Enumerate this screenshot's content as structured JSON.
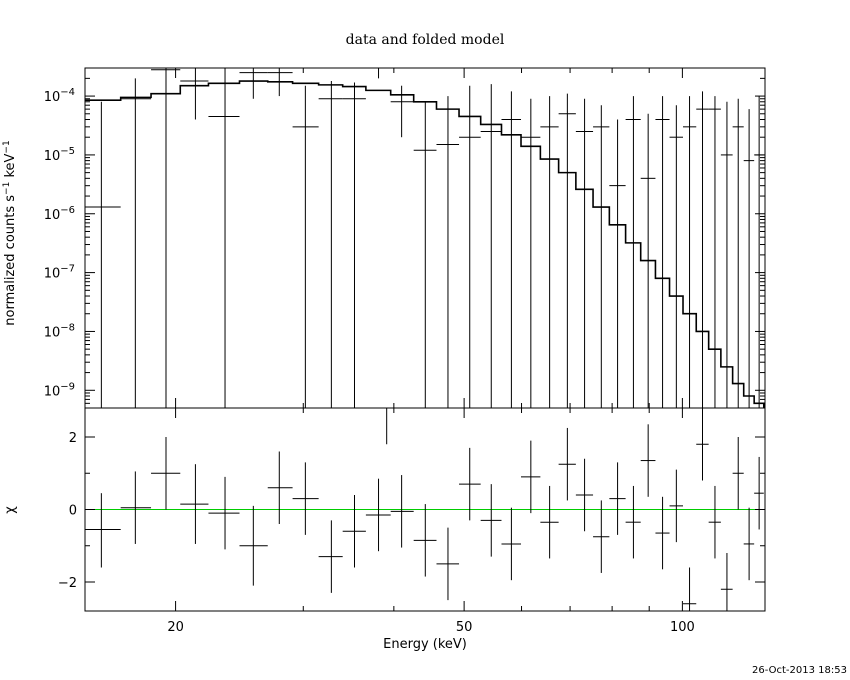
{
  "chart_data": [
    {
      "panel": "top",
      "type": "line",
      "title": "data and folded model",
      "xlabel": "",
      "ylabel": "normalized counts s",
      "ylabel_sup1": "−1",
      "ylabel_mid": " keV",
      "ylabel_sup2": "−1",
      "x_scale": "log",
      "y_scale": "log",
      "xlim": [
        15,
        130
      ],
      "ylim": [
        5e-10,
        0.0003
      ],
      "y_ticks": [
        {
          "value": 1e-09,
          "mant": "10",
          "exp": "−9"
        },
        {
          "value": 1e-08,
          "mant": "10",
          "exp": "−8"
        },
        {
          "value": 1e-07,
          "mant": "10",
          "exp": "−7"
        },
        {
          "value": 1e-06,
          "mant": "10",
          "exp": "−6"
        },
        {
          "value": 1e-05,
          "mant": "10",
          "exp": "−5"
        },
        {
          "value": 0.0001,
          "mant": "10",
          "exp": "−4"
        }
      ],
      "data": [
        {
          "x": 15.8,
          "xlo": 15.0,
          "xhi": 16.8,
          "y": 1.3e-06,
          "ylo": 5e-10,
          "yhi": 8e-05
        },
        {
          "x": 17.6,
          "xlo": 16.8,
          "xhi": 18.5,
          "y": 9e-05,
          "ylo": 5e-10,
          "yhi": 0.0002
        },
        {
          "x": 19.4,
          "xlo": 18.5,
          "xhi": 20.3,
          "y": 0.00028,
          "ylo": 5e-10,
          "yhi": 0.0003
        },
        {
          "x": 21.3,
          "xlo": 20.3,
          "xhi": 22.2,
          "y": 0.00018,
          "ylo": 4e-05,
          "yhi": 0.0003
        },
        {
          "x": 23.4,
          "xlo": 22.2,
          "xhi": 24.5,
          "y": 4.5e-05,
          "ylo": 5e-10,
          "yhi": 0.0003
        },
        {
          "x": 25.6,
          "xlo": 24.5,
          "xhi": 26.8,
          "y": 0.00025,
          "ylo": 9e-05,
          "yhi": 0.0003
        },
        {
          "x": 27.8,
          "xlo": 26.8,
          "xhi": 29.0,
          "y": 0.00025,
          "ylo": 0.0001,
          "yhi": 0.0003
        },
        {
          "x": 30.2,
          "xlo": 29.0,
          "xhi": 31.5,
          "y": 3e-05,
          "ylo": 5e-10,
          "yhi": 0.00015
        },
        {
          "x": 32.8,
          "xlo": 31.5,
          "xhi": 34.0,
          "y": 9e-05,
          "ylo": 5e-10,
          "yhi": 0.00018
        },
        {
          "x": 35.3,
          "xlo": 34.0,
          "xhi": 36.6,
          "y": 9e-05,
          "ylo": 5e-10,
          "yhi": 0.00017
        },
        {
          "x": 38.1,
          "xlo": 36.6,
          "xhi": 39.6,
          "y": 0.0003,
          "ylo": 0.0002,
          "yhi": 0.0003
        },
        {
          "x": 41.0,
          "xlo": 39.6,
          "xhi": 42.6,
          "y": 8e-05,
          "ylo": 2e-05,
          "yhi": 0.00015
        },
        {
          "x": 44.2,
          "xlo": 42.6,
          "xhi": 45.8,
          "y": 1.2e-05,
          "ylo": 5e-10,
          "yhi": 8e-05
        },
        {
          "x": 47.5,
          "xlo": 45.8,
          "xhi": 49.2,
          "y": 1.5e-05,
          "ylo": 5e-10,
          "yhi": 0.0001
        },
        {
          "x": 50.9,
          "xlo": 49.2,
          "xhi": 52.7,
          "y": 2e-05,
          "ylo": 5e-10,
          "yhi": 0.00015
        },
        {
          "x": 54.5,
          "xlo": 52.7,
          "xhi": 56.3,
          "y": 2.5e-05,
          "ylo": 5e-10,
          "yhi": 0.00016
        },
        {
          "x": 58.1,
          "xlo": 56.3,
          "xhi": 59.9,
          "y": 4e-05,
          "ylo": 5e-10,
          "yhi": 0.00012
        },
        {
          "x": 61.8,
          "xlo": 59.9,
          "xhi": 63.7,
          "y": 2e-05,
          "ylo": 5e-10,
          "yhi": 9e-05
        },
        {
          "x": 65.6,
          "xlo": 63.7,
          "xhi": 67.5,
          "y": 3e-05,
          "ylo": 5e-10,
          "yhi": 0.0001
        },
        {
          "x": 69.4,
          "xlo": 67.5,
          "xhi": 71.3,
          "y": 5e-05,
          "ylo": 5e-10,
          "yhi": 0.00011
        },
        {
          "x": 73.3,
          "xlo": 71.3,
          "xhi": 75.3,
          "y": 2.5e-05,
          "ylo": 5e-10,
          "yhi": 9e-05
        },
        {
          "x": 77.3,
          "xlo": 75.3,
          "xhi": 79.3,
          "y": 3e-05,
          "ylo": 5e-10,
          "yhi": 7e-05
        },
        {
          "x": 81.4,
          "xlo": 79.3,
          "xhi": 83.5,
          "y": 3e-06,
          "ylo": 5e-10,
          "yhi": 4e-05
        },
        {
          "x": 85.6,
          "xlo": 83.5,
          "xhi": 87.6,
          "y": 4e-05,
          "ylo": 5e-10,
          "yhi": 0.0001
        },
        {
          "x": 89.7,
          "xlo": 87.6,
          "xhi": 91.8,
          "y": 4e-06,
          "ylo": 5e-10,
          "yhi": 5e-05
        },
        {
          "x": 93.9,
          "xlo": 91.8,
          "xhi": 96.0,
          "y": 4e-05,
          "ylo": 5e-10,
          "yhi": 0.0001
        },
        {
          "x": 98.1,
          "xlo": 96.0,
          "xhi": 100.2,
          "y": 2e-05,
          "ylo": 5e-10,
          "yhi": 7e-05
        },
        {
          "x": 102.3,
          "xlo": 100.2,
          "xhi": 104.5,
          "y": 3e-05,
          "ylo": 5e-10,
          "yhi": 0.0001
        },
        {
          "x": 106.6,
          "xlo": 104.5,
          "xhi": 108.7,
          "y": 6e-05,
          "ylo": 5e-10,
          "yhi": 0.00012
        },
        {
          "x": 110.9,
          "xlo": 108.7,
          "xhi": 113.0,
          "y": 6e-05,
          "ylo": 5e-10,
          "yhi": 0.0001
        },
        {
          "x": 115.2,
          "xlo": 113.0,
          "xhi": 117.3,
          "y": 1e-05,
          "ylo": 5e-10,
          "yhi": 8e-05
        },
        {
          "x": 119.4,
          "xlo": 117.3,
          "xhi": 121.5,
          "y": 3e-05,
          "ylo": 5e-10,
          "yhi": 9e-05
        },
        {
          "x": 123.6,
          "xlo": 121.5,
          "xhi": 125.6,
          "y": 8e-06,
          "ylo": 5e-10,
          "yhi": 6e-05
        },
        {
          "x": 127.6,
          "xlo": 125.6,
          "xhi": 129.5,
          "y": 1e-05,
          "ylo": 5e-10,
          "yhi": 0.0001
        }
      ],
      "model": [
        {
          "x": 15,
          "y": 8.5e-05
        },
        {
          "x": 16.8,
          "y": 9.5e-05
        },
        {
          "x": 18.5,
          "y": 0.00011
        },
        {
          "x": 20.3,
          "y": 0.00015
        },
        {
          "x": 22.2,
          "y": 0.000165
        },
        {
          "x": 24.5,
          "y": 0.00018
        },
        {
          "x": 26.8,
          "y": 0.000175
        },
        {
          "x": 29.0,
          "y": 0.000165
        },
        {
          "x": 31.5,
          "y": 0.000155
        },
        {
          "x": 34.0,
          "y": 0.000145
        },
        {
          "x": 36.6,
          "y": 0.000125
        },
        {
          "x": 39.6,
          "y": 0.000105
        },
        {
          "x": 42.6,
          "y": 8e-05
        },
        {
          "x": 45.8,
          "y": 6e-05
        },
        {
          "x": 49.2,
          "y": 4.5e-05
        },
        {
          "x": 52.7,
          "y": 3.3e-05
        },
        {
          "x": 56.3,
          "y": 2.2e-05
        },
        {
          "x": 59.9,
          "y": 1.4e-05
        },
        {
          "x": 63.7,
          "y": 8.5e-06
        },
        {
          "x": 67.5,
          "y": 5e-06
        },
        {
          "x": 71.3,
          "y": 2.6e-06
        },
        {
          "x": 75.3,
          "y": 1.3e-06
        },
        {
          "x": 79.3,
          "y": 6.5e-07
        },
        {
          "x": 83.5,
          "y": 3.2e-07
        },
        {
          "x": 87.6,
          "y": 1.6e-07
        },
        {
          "x": 91.8,
          "y": 8e-08
        },
        {
          "x": 96.0,
          "y": 4e-08
        },
        {
          "x": 100.2,
          "y": 2e-08
        },
        {
          "x": 104.5,
          "y": 1e-08
        },
        {
          "x": 108.7,
          "y": 5e-09
        },
        {
          "x": 113.0,
          "y": 2.5e-09
        },
        {
          "x": 117.3,
          "y": 1.3e-09
        },
        {
          "x": 121.5,
          "y": 8e-10
        },
        {
          "x": 125.6,
          "y": 6e-10
        },
        {
          "x": 129.5,
          "y": 5.2e-10
        },
        {
          "x": 130,
          "y": 5.2e-10
        }
      ]
    },
    {
      "panel": "bottom",
      "type": "scatter",
      "xlabel": "Energy (keV)",
      "ylabel": "χ",
      "x_scale": "log",
      "y_scale": "linear",
      "xlim": [
        15,
        130
      ],
      "ylim": [
        -2.8,
        2.8
      ],
      "x_ticks": [
        20,
        50,
        100
      ],
      "y_ticks": [
        -2,
        0,
        2
      ],
      "zero_line_color": "#00cc00",
      "data": [
        {
          "x": 15.8,
          "xlo": 15.0,
          "xhi": 16.8,
          "y": -0.55,
          "ylo": -1.6,
          "yhi": 0.45
        },
        {
          "x": 17.6,
          "xlo": 16.8,
          "xhi": 18.5,
          "y": 0.05,
          "ylo": -0.95,
          "yhi": 1.05
        },
        {
          "x": 19.4,
          "xlo": 18.5,
          "xhi": 20.3,
          "y": 1.0,
          "ylo": 0.0,
          "yhi": 2.0
        },
        {
          "x": 21.3,
          "xlo": 20.3,
          "xhi": 22.2,
          "y": 0.15,
          "ylo": -0.95,
          "yhi": 1.25
        },
        {
          "x": 23.4,
          "xlo": 22.2,
          "xhi": 24.5,
          "y": -0.1,
          "ylo": -1.1,
          "yhi": 0.9
        },
        {
          "x": 25.6,
          "xlo": 24.5,
          "xhi": 26.8,
          "y": -1.0,
          "ylo": -2.1,
          "yhi": 0.1
        },
        {
          "x": 27.8,
          "xlo": 26.8,
          "xhi": 29.0,
          "y": 0.6,
          "ylo": -0.4,
          "yhi": 1.6
        },
        {
          "x": 30.2,
          "xlo": 29.0,
          "xhi": 31.5,
          "y": 0.3,
          "ylo": -0.7,
          "yhi": 1.3
        },
        {
          "x": 32.8,
          "xlo": 31.5,
          "xhi": 34.0,
          "y": -1.3,
          "ylo": -2.3,
          "yhi": -0.3
        },
        {
          "x": 35.3,
          "xlo": 34.0,
          "xhi": 36.6,
          "y": -0.6,
          "ylo": -1.6,
          "yhi": 0.4
        },
        {
          "x": 38.1,
          "xlo": 36.6,
          "xhi": 39.6,
          "y": -0.15,
          "ylo": -1.15,
          "yhi": 0.85
        },
        {
          "x": 39.1,
          "xlo": 38.6,
          "xhi": 39.6,
          "y": 2.8,
          "ylo": 1.8,
          "yhi": 2.8
        },
        {
          "x": 41.0,
          "xlo": 39.6,
          "xhi": 42.6,
          "y": -0.05,
          "ylo": -1.05,
          "yhi": 0.95
        },
        {
          "x": 44.2,
          "xlo": 42.6,
          "xhi": 45.8,
          "y": -0.85,
          "ylo": -1.85,
          "yhi": 0.15
        },
        {
          "x": 47.5,
          "xlo": 45.8,
          "xhi": 49.2,
          "y": -1.5,
          "ylo": -2.5,
          "yhi": -0.5
        },
        {
          "x": 50.9,
          "xlo": 49.2,
          "xhi": 52.7,
          "y": 0.7,
          "ylo": -0.3,
          "yhi": 1.7
        },
        {
          "x": 54.5,
          "xlo": 52.7,
          "xhi": 56.3,
          "y": -0.3,
          "ylo": -1.3,
          "yhi": 0.7
        },
        {
          "x": 58.1,
          "xlo": 56.3,
          "xhi": 59.9,
          "y": -0.95,
          "ylo": -1.95,
          "yhi": 0.05
        },
        {
          "x": 61.8,
          "xlo": 59.9,
          "xhi": 63.7,
          "y": 0.9,
          "ylo": -0.1,
          "yhi": 1.9
        },
        {
          "x": 65.6,
          "xlo": 63.7,
          "xhi": 67.5,
          "y": -0.35,
          "ylo": -1.35,
          "yhi": 0.65
        },
        {
          "x": 69.4,
          "xlo": 67.5,
          "xhi": 71.3,
          "y": 1.25,
          "ylo": 0.25,
          "yhi": 2.25
        },
        {
          "x": 73.3,
          "xlo": 71.3,
          "xhi": 75.3,
          "y": 0.4,
          "ylo": -0.6,
          "yhi": 1.4
        },
        {
          "x": 77.3,
          "xlo": 75.3,
          "xhi": 79.3,
          "y": -0.75,
          "ylo": -1.75,
          "yhi": 0.25
        },
        {
          "x": 81.4,
          "xlo": 79.3,
          "xhi": 83.5,
          "y": 0.3,
          "ylo": -0.7,
          "yhi": 1.3
        },
        {
          "x": 85.6,
          "xlo": 83.5,
          "xhi": 87.6,
          "y": -0.35,
          "ylo": -1.35,
          "yhi": 0.65
        },
        {
          "x": 89.7,
          "xlo": 87.6,
          "xhi": 91.8,
          "y": 1.35,
          "ylo": 0.35,
          "yhi": 2.35
        },
        {
          "x": 93.9,
          "xlo": 91.8,
          "xhi": 96.0,
          "y": -0.65,
          "ylo": -1.65,
          "yhi": 0.35
        },
        {
          "x": 98.1,
          "xlo": 96.0,
          "xhi": 100.2,
          "y": 0.1,
          "ylo": -0.9,
          "yhi": 1.1
        },
        {
          "x": 102.3,
          "xlo": 100.2,
          "xhi": 104.5,
          "y": -2.6,
          "ylo": -2.8,
          "yhi": -1.6
        },
        {
          "x": 106.6,
          "xlo": 104.5,
          "xhi": 108.7,
          "y": 1.8,
          "ylo": 0.8,
          "yhi": 2.8
        },
        {
          "x": 110.9,
          "xlo": 108.7,
          "xhi": 113.0,
          "y": -0.35,
          "ylo": -1.35,
          "yhi": 0.65
        },
        {
          "x": 115.2,
          "xlo": 113.0,
          "xhi": 117.3,
          "y": -2.2,
          "ylo": -2.8,
          "yhi": -1.2
        },
        {
          "x": 119.4,
          "xlo": 117.3,
          "xhi": 121.5,
          "y": 1.0,
          "ylo": 0.0,
          "yhi": 2.0
        },
        {
          "x": 123.6,
          "xlo": 121.5,
          "xhi": 125.6,
          "y": -0.95,
          "ylo": -1.95,
          "yhi": 0.05
        },
        {
          "x": 127.6,
          "xlo": 125.6,
          "xhi": 129.5,
          "y": 0.45,
          "ylo": -0.55,
          "yhi": 1.45
        }
      ]
    }
  ],
  "footer": {
    "timestamp": "26-Oct-2013 18:53"
  }
}
